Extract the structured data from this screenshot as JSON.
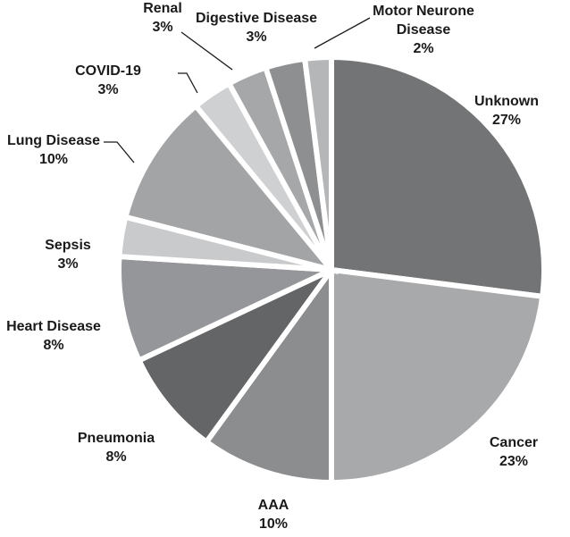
{
  "chart_data": {
    "type": "pie",
    "title": "",
    "slices": [
      {
        "name": "Unknown",
        "label_lines": [
          "Unknown"
        ],
        "percent_label": "27%",
        "value": 27,
        "color": "#737475"
      },
      {
        "name": "Cancer",
        "label_lines": [
          "Cancer"
        ],
        "percent_label": "23%",
        "value": 23,
        "color": "#a8a9ab"
      },
      {
        "name": "AAA",
        "label_lines": [
          "AAA"
        ],
        "percent_label": "10%",
        "value": 10,
        "color": "#8c8d8f"
      },
      {
        "name": "Pneumonia",
        "label_lines": [
          "Pneumonia"
        ],
        "percent_label": "8%",
        "value": 8,
        "color": "#646567"
      },
      {
        "name": "Heart Disease",
        "label_lines": [
          "Heart Disease"
        ],
        "percent_label": "8%",
        "value": 8,
        "color": "#95969a"
      },
      {
        "name": "Sepsis",
        "label_lines": [
          "Sepsis"
        ],
        "percent_label": "3%",
        "value": 3,
        "color": "#c9cacc"
      },
      {
        "name": "Lung Disease",
        "label_lines": [
          "Lung Disease"
        ],
        "percent_label": "10%",
        "value": 10,
        "color": "#a3a4a6"
      },
      {
        "name": "COVID-19",
        "label_lines": [
          "COVID-19"
        ],
        "percent_label": "3%",
        "value": 3,
        "color": "#cfd0d2"
      },
      {
        "name": "Renal",
        "label_lines": [
          "Renal"
        ],
        "percent_label": "3%",
        "value": 3,
        "color": "#a6a7a9"
      },
      {
        "name": "Digestive Disease",
        "label_lines": [
          "Digestive Disease"
        ],
        "percent_label": "3%",
        "value": 3,
        "color": "#8e8f91"
      },
      {
        "name": "Motor Neurone Disease",
        "label_lines": [
          "Motor Neurone",
          "Disease"
        ],
        "percent_label": "2%",
        "value": 2,
        "color": "#b5b6b8"
      }
    ],
    "start_angle_deg": 0,
    "direction": "clockwise",
    "legend": "none",
    "data_labels": "outside"
  }
}
